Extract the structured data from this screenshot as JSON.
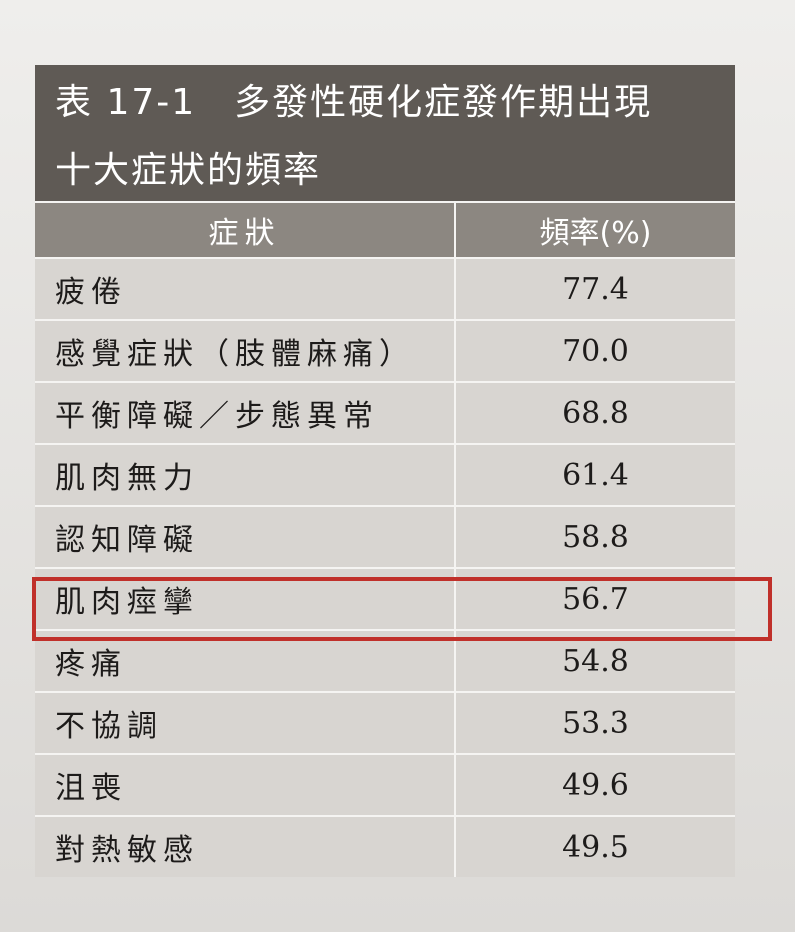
{
  "table": {
    "title": [
      "表 17-1　多發性硬化症發作期出現",
      "十大症狀的頻率"
    ],
    "header": [
      "症狀",
      "頻率(%)"
    ],
    "rows": [
      [
        "疲倦",
        "77.4"
      ],
      [
        "感覺症狀（肢體麻痛）",
        "70.0"
      ],
      [
        "平衡障礙／步態異常",
        "68.8"
      ],
      [
        "肌肉無力",
        "61.4"
      ],
      [
        "認知障礙",
        "58.8"
      ],
      [
        "肌肉痙攣",
        "56.7"
      ],
      [
        "疼痛",
        "54.8"
      ],
      [
        "不協調",
        "53.3"
      ],
      [
        "沮喪",
        "49.6"
      ],
      [
        "對熱敏感",
        "49.5"
      ]
    ]
  }
}
